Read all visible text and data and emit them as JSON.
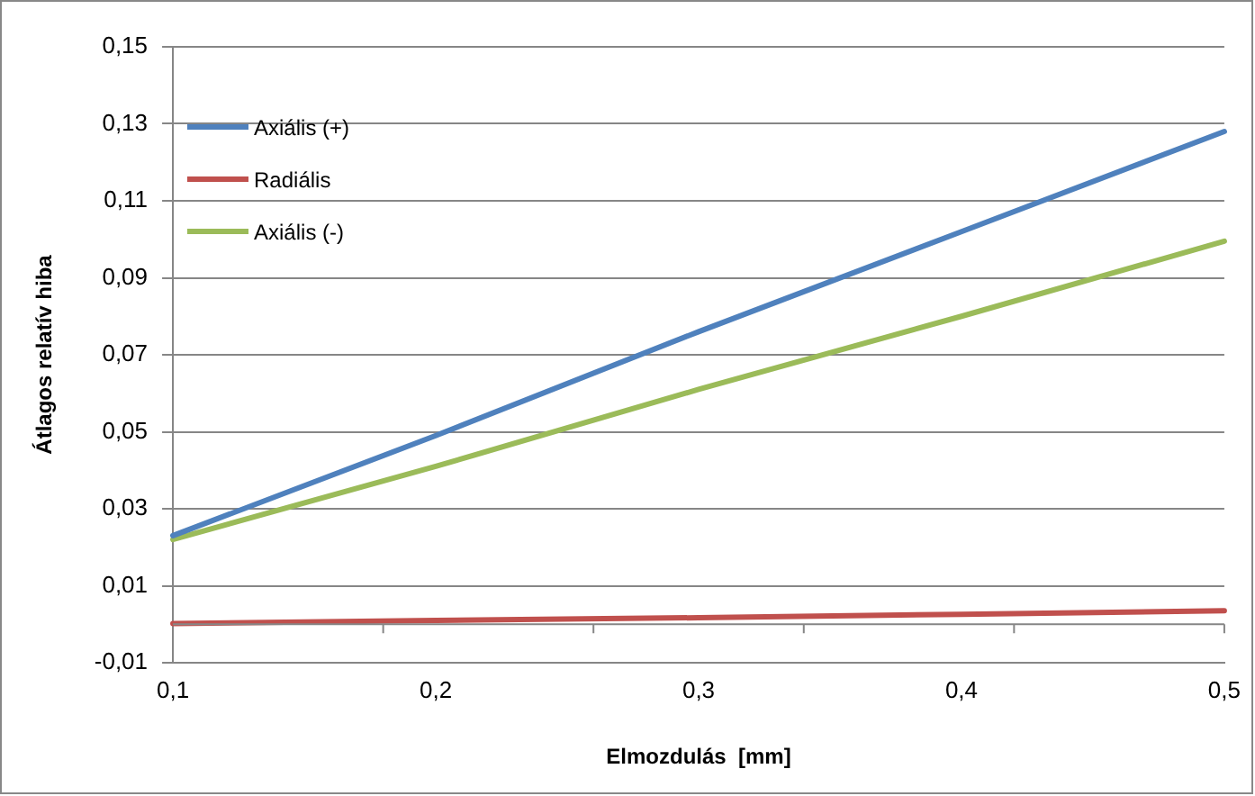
{
  "chart_data": {
    "type": "line",
    "xlabel": "Elmozdulás  [mm]",
    "ylabel": "Átlagos relatív hiba",
    "categories": [
      "0,1",
      "0,2",
      "0,3",
      "0,4",
      "0,5"
    ],
    "series": [
      {
        "name": "Axiális (+)",
        "color": "#4f81bd",
        "values": [
          0.023,
          0.049,
          0.076,
          0.102,
          0.128
        ]
      },
      {
        "name": "Radiális",
        "color": "#c0504d",
        "values": [
          0.0002,
          0.001,
          0.0017,
          0.0026,
          0.0035
        ]
      },
      {
        "name": "Axiális (-)",
        "color": "#9bbb59",
        "values": [
          0.022,
          0.041,
          0.061,
          0.08,
          0.0995
        ]
      }
    ],
    "ylim": [
      -0.01,
      0.15
    ],
    "yticks": [
      {
        "value": -0.01,
        "label": "-0,01"
      },
      {
        "value": 0.01,
        "label": "0,01"
      },
      {
        "value": 0.03,
        "label": "0,03"
      },
      {
        "value": 0.05,
        "label": "0,05"
      },
      {
        "value": 0.07,
        "label": "0,07"
      },
      {
        "value": 0.09,
        "label": "0,09"
      },
      {
        "value": 0.11,
        "label": "0,11"
      },
      {
        "value": 0.13,
        "label": "0,13"
      },
      {
        "value": 0.15,
        "label": "0,15"
      }
    ],
    "ref_lines": [
      {
        "axis": "y",
        "value": 0,
        "color": "#868686"
      }
    ],
    "grid": "y",
    "legend": "top left",
    "marker": "none",
    "line_style": "solid"
  }
}
